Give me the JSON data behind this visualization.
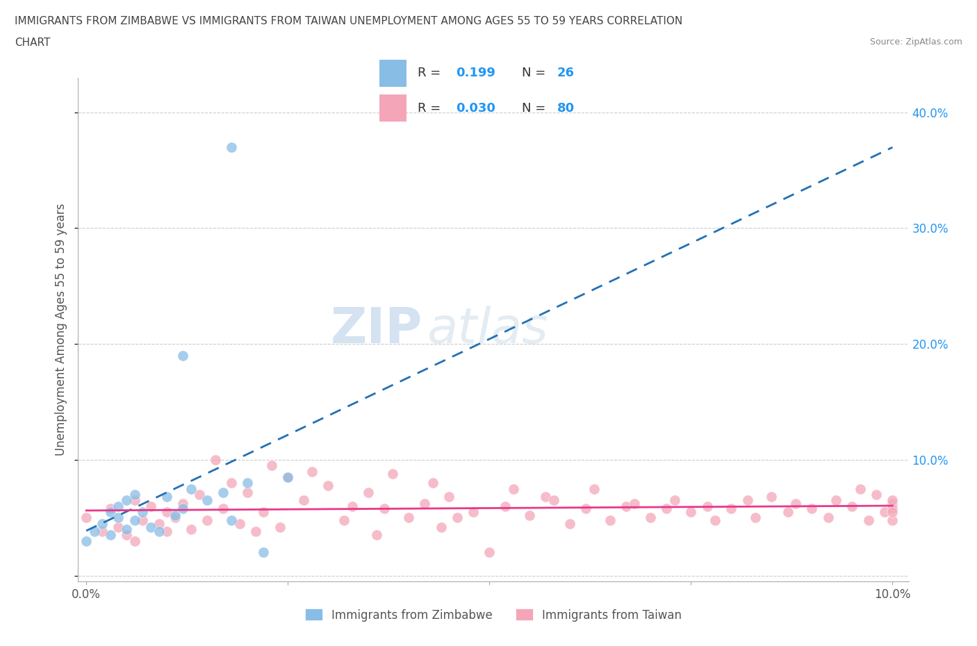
{
  "title_line1": "IMMIGRANTS FROM ZIMBABWE VS IMMIGRANTS FROM TAIWAN UNEMPLOYMENT AMONG AGES 55 TO 59 YEARS CORRELATION",
  "title_line2": "CHART",
  "source": "Source: ZipAtlas.com",
  "ylabel": "Unemployment Among Ages 55 to 59 years",
  "xlabel": "",
  "xlim": [
    -0.001,
    0.102
  ],
  "ylim": [
    -0.005,
    0.43
  ],
  "yticks": [
    0.0,
    0.1,
    0.2,
    0.3,
    0.4
  ],
  "ytick_labels_right": [
    "",
    "10.0%",
    "20.0%",
    "30.0%",
    "40.0%"
  ],
  "xticks": [
    0.0,
    0.025,
    0.05,
    0.075,
    0.1
  ],
  "xtick_labels": [
    "0.0%",
    "",
    "",
    "",
    "10.0%"
  ],
  "color_zimbabwe": "#88bde6",
  "color_taiwan": "#f4a6b8",
  "color_line_zimbabwe": "#2170b5",
  "color_line_taiwan": "#e8388a",
  "watermark_zip": "ZIP",
  "watermark_atlas": "atlas",
  "legend_R_zimbabwe": "0.199",
  "legend_N_zimbabwe": "26",
  "legend_R_taiwan": "0.030",
  "legend_N_taiwan": "80",
  "zimbabwe_x": [
    0.0,
    0.001,
    0.002,
    0.003,
    0.003,
    0.004,
    0.004,
    0.005,
    0.005,
    0.006,
    0.006,
    0.007,
    0.008,
    0.009,
    0.01,
    0.011,
    0.012,
    0.013,
    0.015,
    0.017,
    0.018,
    0.02,
    0.022,
    0.025,
    0.012,
    0.018
  ],
  "zimbabwe_y": [
    0.03,
    0.038,
    0.045,
    0.055,
    0.035,
    0.05,
    0.06,
    0.04,
    0.065,
    0.048,
    0.07,
    0.055,
    0.042,
    0.038,
    0.068,
    0.052,
    0.058,
    0.075,
    0.065,
    0.072,
    0.048,
    0.08,
    0.02,
    0.085,
    0.19,
    0.37
  ],
  "taiwan_x": [
    0.0,
    0.002,
    0.003,
    0.004,
    0.005,
    0.006,
    0.006,
    0.007,
    0.008,
    0.009,
    0.01,
    0.01,
    0.011,
    0.012,
    0.013,
    0.014,
    0.015,
    0.016,
    0.017,
    0.018,
    0.019,
    0.02,
    0.021,
    0.022,
    0.023,
    0.024,
    0.025,
    0.027,
    0.028,
    0.03,
    0.032,
    0.033,
    0.035,
    0.036,
    0.037,
    0.038,
    0.04,
    0.042,
    0.043,
    0.044,
    0.045,
    0.046,
    0.048,
    0.05,
    0.052,
    0.053,
    0.055,
    0.057,
    0.058,
    0.06,
    0.062,
    0.063,
    0.065,
    0.067,
    0.068,
    0.07,
    0.072,
    0.073,
    0.075,
    0.077,
    0.078,
    0.08,
    0.082,
    0.083,
    0.085,
    0.087,
    0.088,
    0.09,
    0.092,
    0.093,
    0.095,
    0.096,
    0.097,
    0.098,
    0.099,
    0.1,
    0.1,
    0.1,
    0.1,
    0.1
  ],
  "taiwan_y": [
    0.05,
    0.038,
    0.058,
    0.042,
    0.035,
    0.065,
    0.03,
    0.048,
    0.06,
    0.045,
    0.055,
    0.038,
    0.05,
    0.062,
    0.04,
    0.07,
    0.048,
    0.1,
    0.058,
    0.08,
    0.045,
    0.072,
    0.038,
    0.055,
    0.095,
    0.042,
    0.085,
    0.065,
    0.09,
    0.078,
    0.048,
    0.06,
    0.072,
    0.035,
    0.058,
    0.088,
    0.05,
    0.062,
    0.08,
    0.042,
    0.068,
    0.05,
    0.055,
    0.02,
    0.06,
    0.075,
    0.052,
    0.068,
    0.065,
    0.045,
    0.058,
    0.075,
    0.048,
    0.06,
    0.062,
    0.05,
    0.058,
    0.065,
    0.055,
    0.06,
    0.048,
    0.058,
    0.065,
    0.05,
    0.068,
    0.055,
    0.062,
    0.058,
    0.05,
    0.065,
    0.06,
    0.075,
    0.048,
    0.07,
    0.055,
    0.062,
    0.058,
    0.048,
    0.065,
    0.055
  ],
  "right_ytick_color": "#2196f3",
  "grid_color": "#cccccc",
  "grid_linestyle": "--",
  "background_color": "#ffffff",
  "legend_color_R": "#2196f3",
  "legend_color_N": "#2196f3",
  "legend_color_text": "#333333"
}
